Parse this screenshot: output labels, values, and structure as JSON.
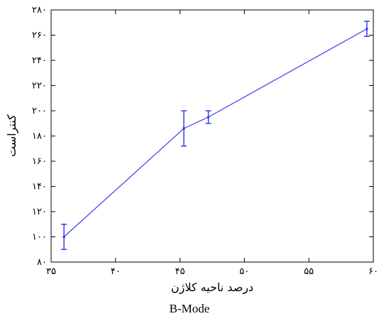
{
  "chart_data": {
    "type": "line",
    "title": "",
    "xlabel": "درصد ناحیه کلاژن",
    "ylabel": "کنتراست",
    "xlim": [
      35,
      60
    ],
    "ylim": [
      80,
      280
    ],
    "x_ticks": [
      35,
      40,
      45,
      50,
      55,
      60
    ],
    "y_ticks": [
      80,
      100,
      120,
      140,
      160,
      180,
      200,
      220,
      240,
      260,
      280
    ],
    "x_tick_labels": [
      "۳۵",
      "۴۰",
      "۴۵",
      "۵۰",
      "۵۵",
      "۶۰"
    ],
    "y_tick_labels": [
      "۸۰",
      "۱۰۰",
      "۱۲۰",
      "۱۴۰",
      "۱۶۰",
      "۱۸۰",
      "۲۰۰",
      "۲۲۰",
      "۲۴۰",
      "۲۶۰",
      "۲۸۰"
    ],
    "grid": false,
    "color": "#3b3bf0",
    "series": [
      {
        "x": [
          36.0,
          45.3,
          47.2,
          59.5
        ],
        "y": [
          100,
          186,
          195,
          265
        ],
        "error": [
          10,
          14,
          5,
          6
        ]
      }
    ]
  },
  "caption": "B-Mode"
}
